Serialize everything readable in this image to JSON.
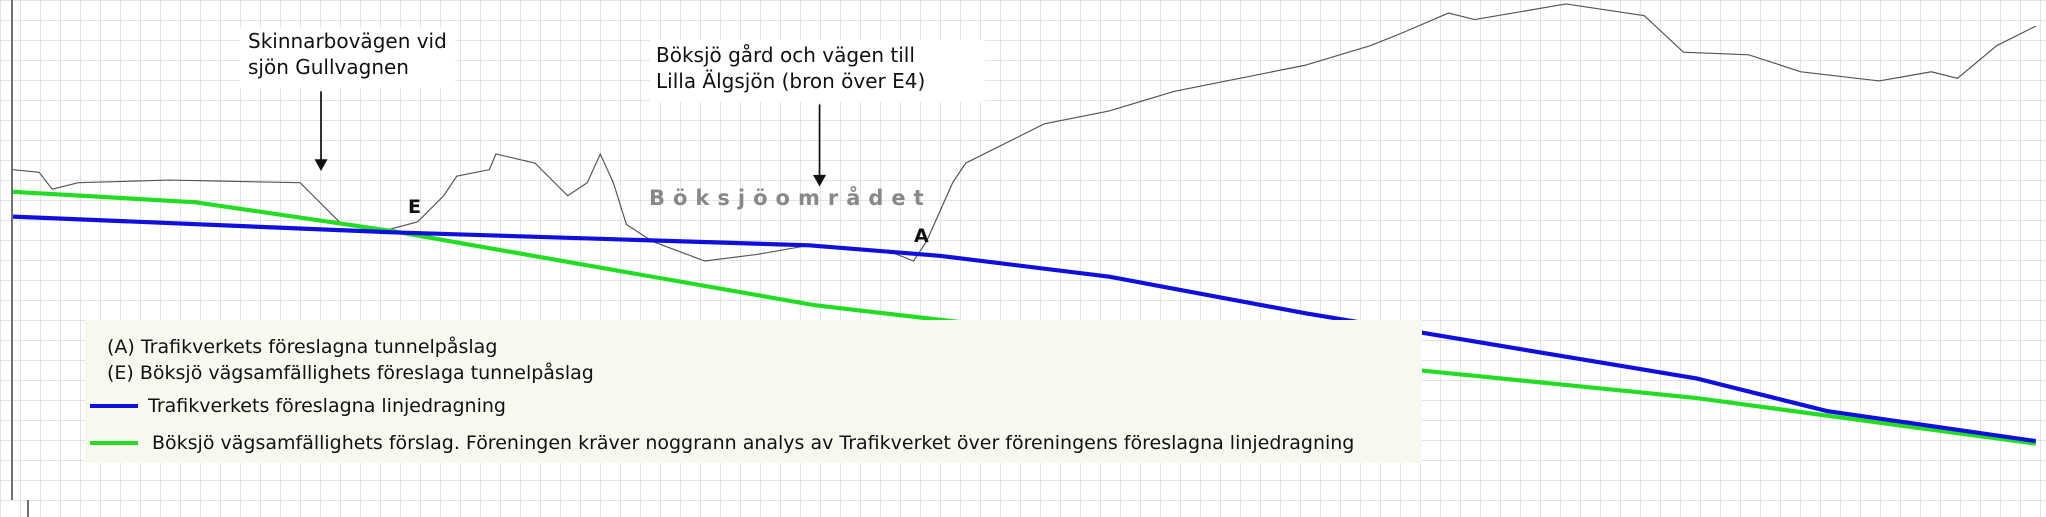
{
  "annotations": {
    "skinnarbo": [
      "Skinnarbovägen vid",
      "sjön Gullvagnen"
    ],
    "boksjo_gard": [
      "Böksjö gård och vägen  till",
      "Lilla Älgsjön (bron över E4)"
    ],
    "area_label": "Böksjöområdet",
    "marker_e": "E",
    "marker_a": "A"
  },
  "legend": {
    "items": [
      "(A)  Trafikverkets föreslagna tunnelpåslag",
      "(E)  Böksjö vägsamfällighets föreslaga tunnelpåslag",
      "Trafikverkets föreslagna linjedragning",
      "Böksjö vägsamfällighets förslag. Föreningen kräver noggrann analys av Trafikverket över föreningens föreslagna linjedragning"
    ]
  }
}
